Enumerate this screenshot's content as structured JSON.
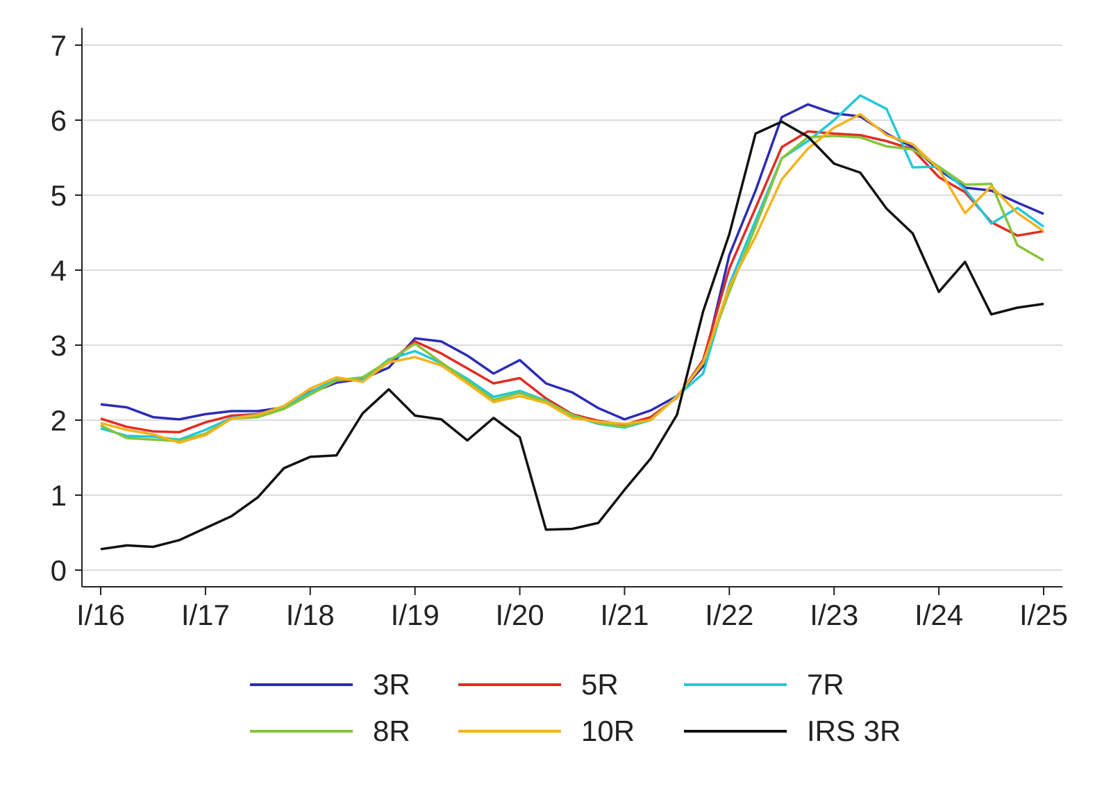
{
  "chart_data": {
    "type": "line",
    "title": "",
    "xlabel": "",
    "ylabel": "",
    "ylim": [
      0,
      7
    ],
    "yticks": [
      0,
      1,
      2,
      3,
      4,
      5,
      6,
      7
    ],
    "xticks": [
      "I/16",
      "I/17",
      "I/18",
      "I/19",
      "I/20",
      "I/21",
      "I/22",
      "I/23",
      "I/24",
      "I/25"
    ],
    "x_labels_note": "quarterly observations, 2016 Q1 to 2025 Q1",
    "grid": "horizontal",
    "legend_position": "bottom",
    "series": [
      {
        "name": "3R",
        "color": "#2b2bb5",
        "values": [
          2.21,
          2.17,
          2.04,
          2.01,
          2.08,
          2.12,
          2.12,
          2.17,
          2.36,
          2.5,
          2.55,
          2.7,
          3.09,
          3.05,
          2.86,
          2.62,
          2.8,
          2.49,
          2.37,
          2.16,
          2.01,
          2.13,
          2.32,
          2.72,
          4.2,
          5.06,
          6.04,
          6.21,
          6.09,
          6.05,
          5.82,
          5.64,
          5.34,
          5.1,
          5.06,
          4.9,
          4.75
        ]
      },
      {
        "name": "5R",
        "color": "#e32b22",
        "values": [
          2.02,
          1.91,
          1.85,
          1.84,
          1.97,
          2.06,
          2.08,
          2.17,
          2.38,
          2.52,
          2.55,
          2.77,
          3.05,
          2.89,
          2.69,
          2.49,
          2.56,
          2.29,
          2.08,
          1.99,
          1.94,
          2.04,
          2.3,
          2.8,
          4.02,
          4.83,
          5.64,
          5.85,
          5.82,
          5.8,
          5.72,
          5.61,
          5.24,
          5.04,
          4.64,
          4.46,
          4.52
        ]
      },
      {
        "name": "7R",
        "color": "#22c8d8",
        "values": [
          1.89,
          1.79,
          1.78,
          1.74,
          1.87,
          2.03,
          2.07,
          2.18,
          2.37,
          2.55,
          2.53,
          2.81,
          2.92,
          2.76,
          2.55,
          2.31,
          2.39,
          2.26,
          2.06,
          1.95,
          1.9,
          2.0,
          2.32,
          2.62,
          3.81,
          4.66,
          5.49,
          5.72,
          6.0,
          6.33,
          6.15,
          5.37,
          5.38,
          5.08,
          4.62,
          4.83,
          4.58
        ]
      },
      {
        "name": "8R",
        "color": "#86c43a",
        "values": [
          1.93,
          1.76,
          1.74,
          1.72,
          1.82,
          2.02,
          2.04,
          2.15,
          2.34,
          2.53,
          2.57,
          2.79,
          3.02,
          2.77,
          2.52,
          2.27,
          2.36,
          2.25,
          2.07,
          1.96,
          1.91,
          2.01,
          2.31,
          2.77,
          3.71,
          4.58,
          5.49,
          5.77,
          5.79,
          5.77,
          5.65,
          5.61,
          5.38,
          5.14,
          5.15,
          4.33,
          4.13
        ]
      },
      {
        "name": "10R",
        "color": "#f5b21a",
        "values": [
          1.96,
          1.87,
          1.81,
          1.7,
          1.8,
          2.02,
          2.07,
          2.19,
          2.42,
          2.57,
          2.51,
          2.77,
          2.84,
          2.73,
          2.49,
          2.24,
          2.32,
          2.23,
          2.03,
          1.98,
          1.95,
          2.0,
          2.31,
          2.76,
          3.78,
          4.45,
          5.21,
          5.62,
          5.9,
          6.08,
          5.8,
          5.68,
          5.35,
          4.76,
          5.12,
          4.76,
          4.52
        ]
      },
      {
        "name": "IRS 3R",
        "color": "#111111",
        "values": [
          0.28,
          0.33,
          0.31,
          0.4,
          0.56,
          0.72,
          0.97,
          1.36,
          1.51,
          1.53,
          2.09,
          2.41,
          2.06,
          2.01,
          1.73,
          2.03,
          1.77,
          0.54,
          0.55,
          0.63,
          1.07,
          1.49,
          2.07,
          3.45,
          4.48,
          5.82,
          5.98,
          5.78,
          5.42,
          5.3,
          4.82,
          4.49,
          3.71,
          4.11,
          3.41,
          3.5,
          3.55
        ]
      }
    ]
  }
}
